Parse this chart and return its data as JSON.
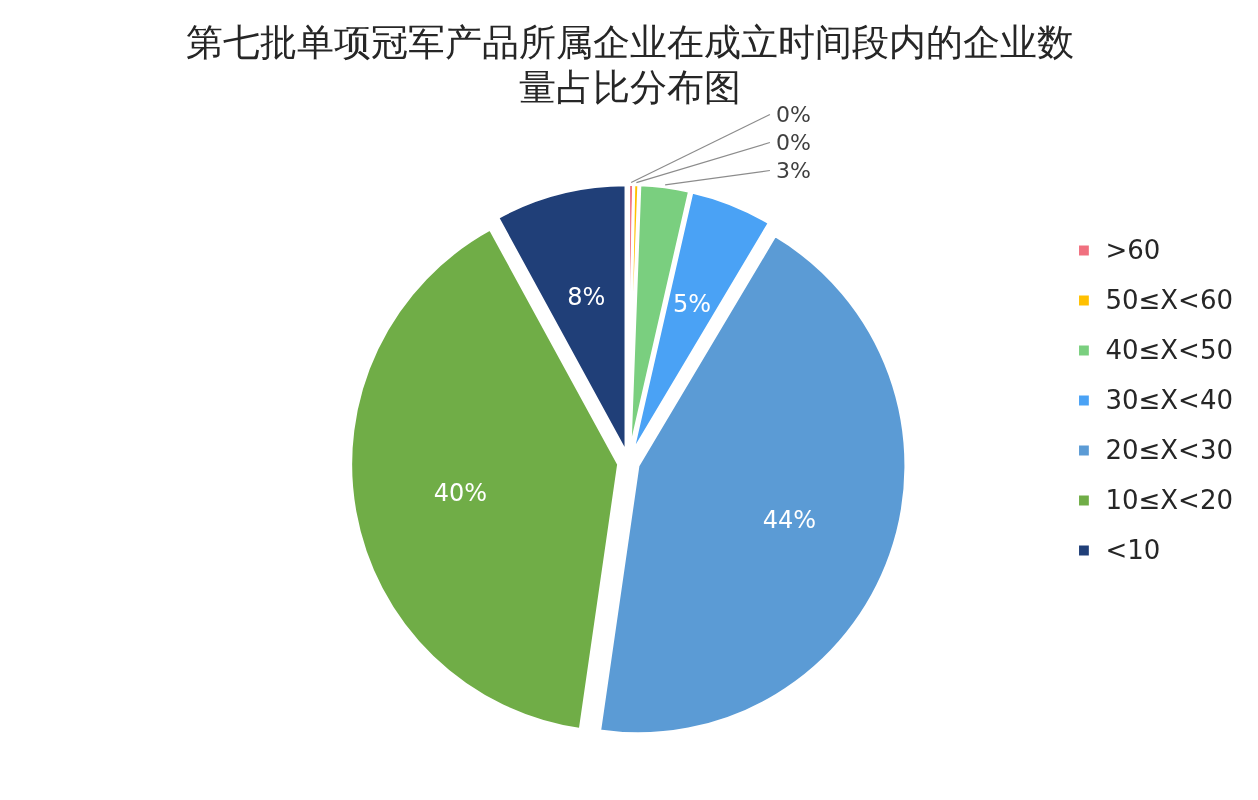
{
  "chart_data": {
    "type": "pie",
    "title": "第七批单项冠军产品所属企业在成立时间段内的企业数量占比分布图",
    "categories": [
      ">60",
      "50≤X<60",
      "40≤X<50",
      "30≤X<40",
      "20≤X<30",
      "10≤X<20",
      "<10"
    ],
    "values": [
      0.3,
      0.3,
      3,
      5,
      44,
      40,
      8
    ],
    "value_labels": [
      "0%",
      "0%",
      "3%",
      "5%",
      "44%",
      "40%",
      "8%"
    ],
    "colors": [
      "#f0707f",
      "#ffc000",
      "#7acf7f",
      "#4aa2f5",
      "#5b9bd5",
      "#70ad47",
      "#203f78"
    ],
    "legend": "right"
  }
}
